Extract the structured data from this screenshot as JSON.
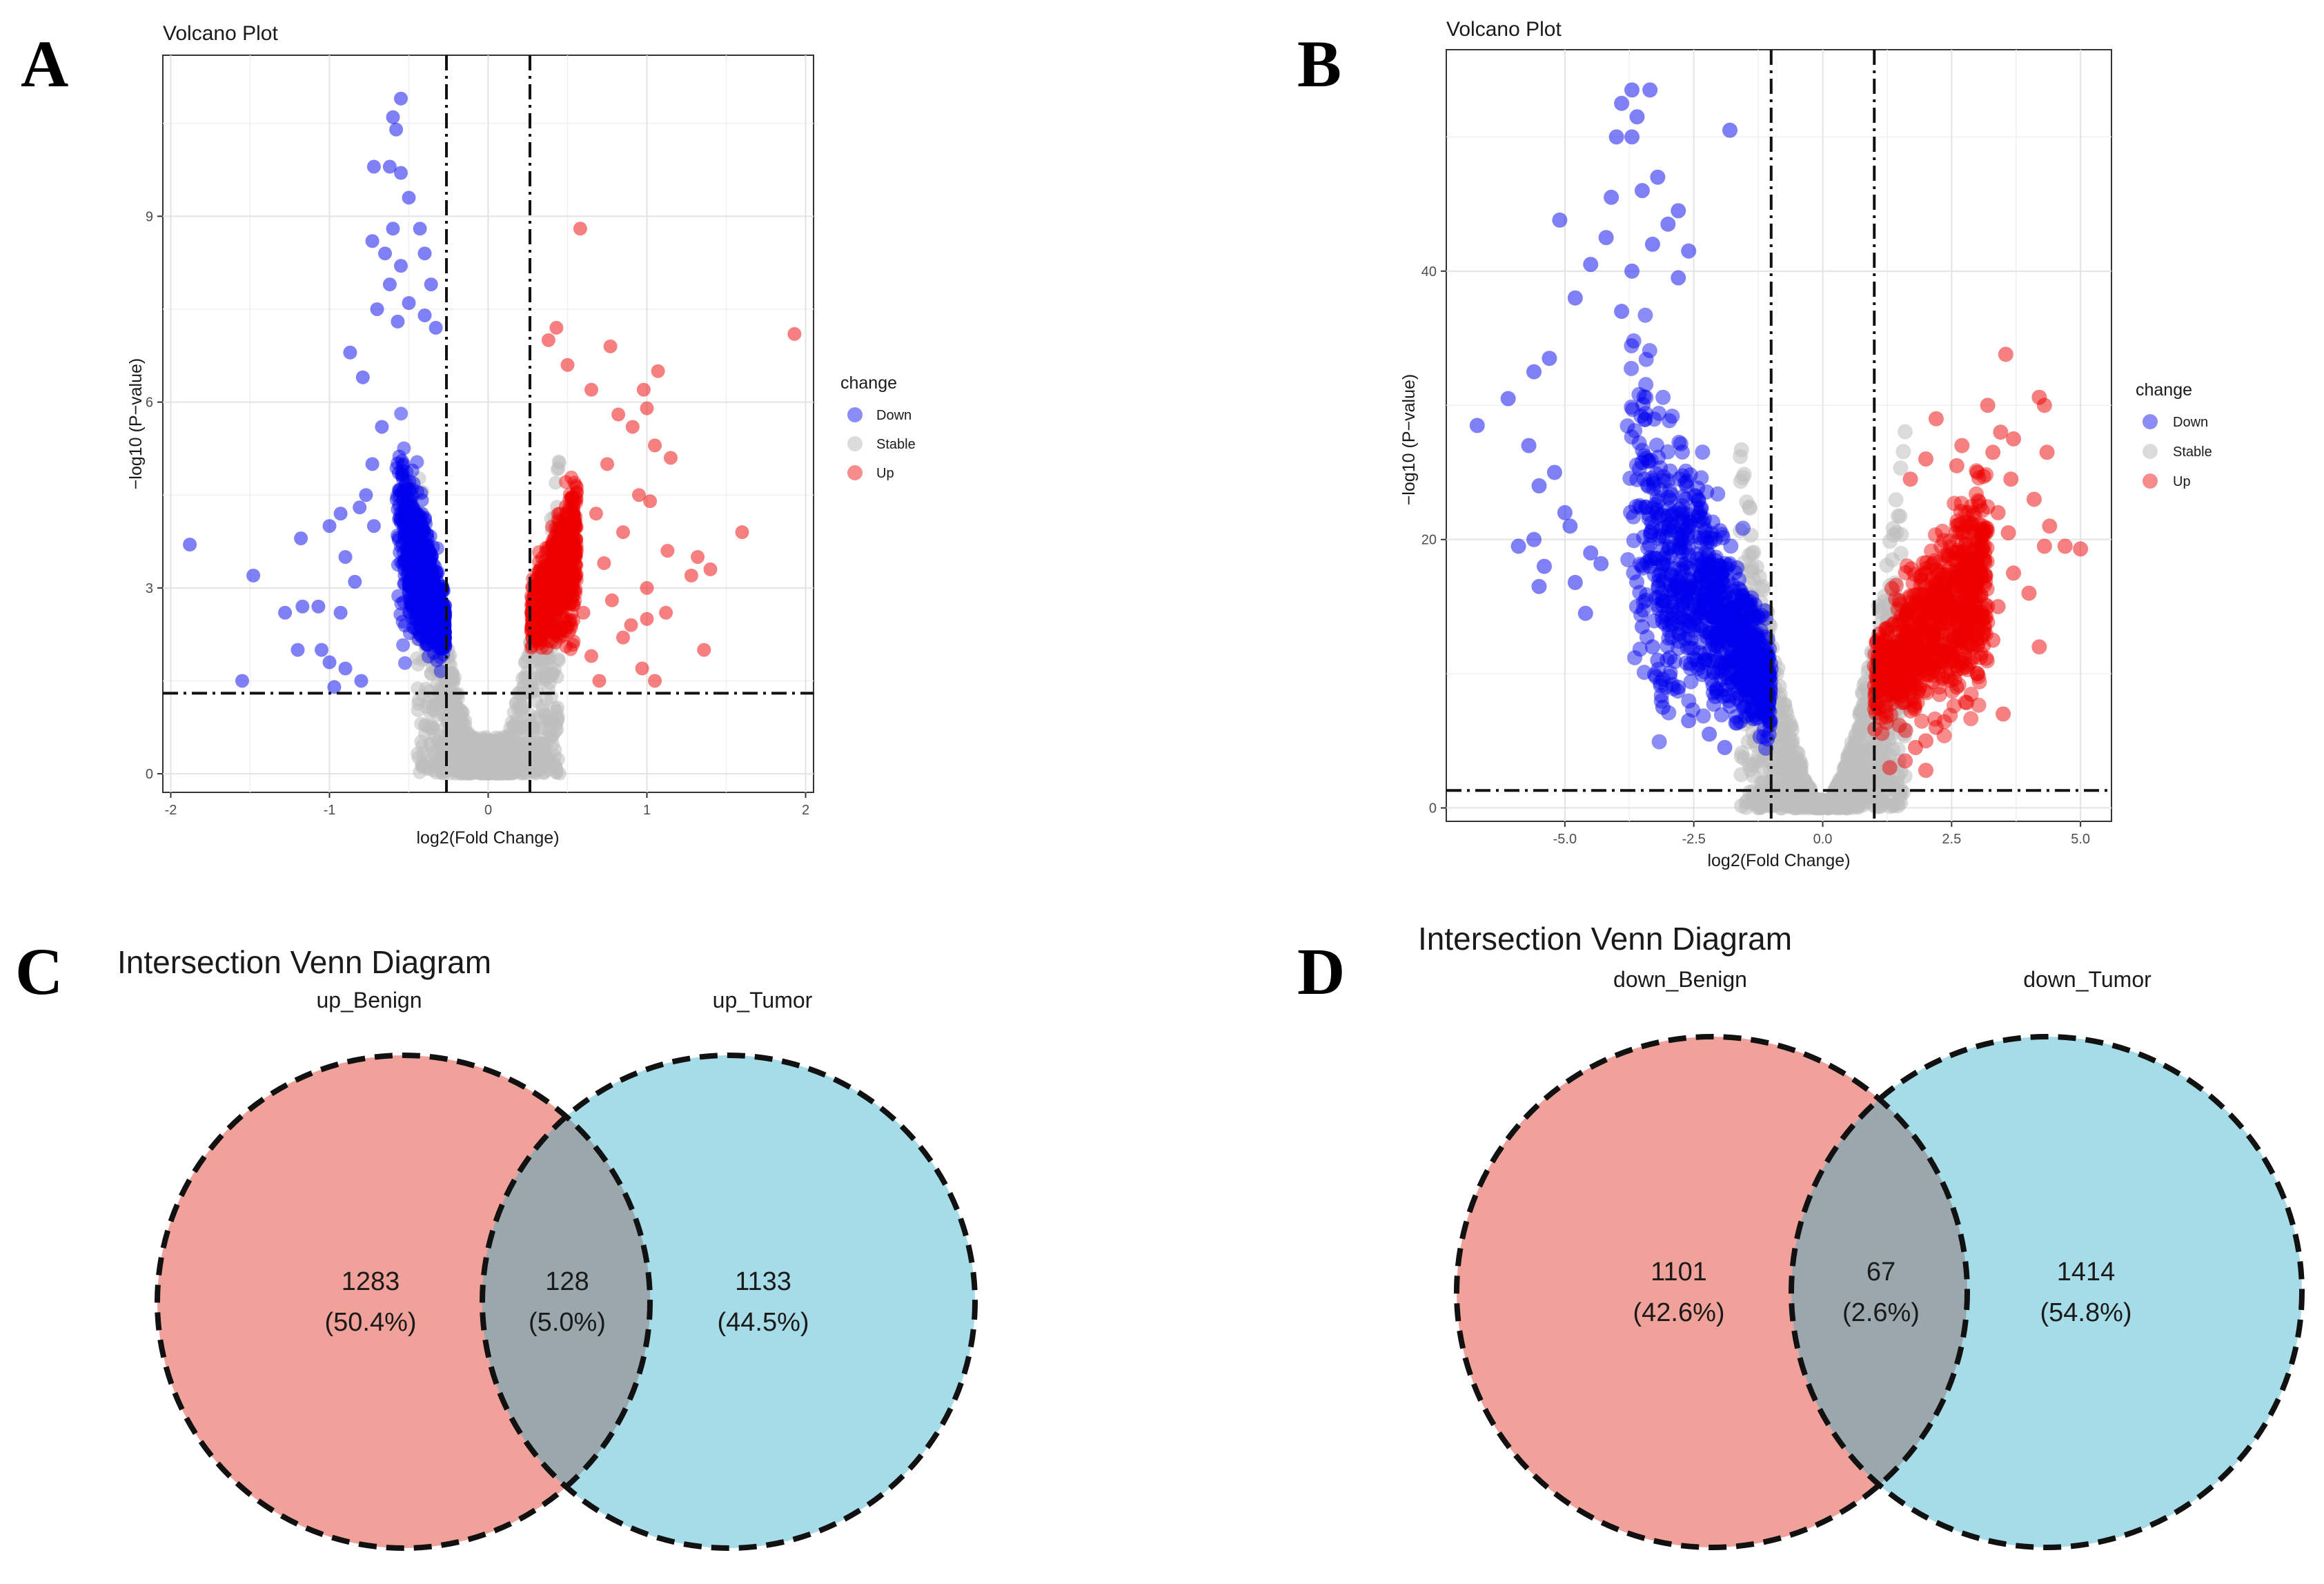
{
  "figure": {
    "panel_labels": [
      "A",
      "B",
      "C",
      "D"
    ]
  },
  "colors": {
    "down": "#0000ee",
    "stable": "#bdbdbd",
    "up": "#ee0000",
    "venn_left": "#f0a199",
    "venn_right": "#a6dbe8",
    "venn_overlap": "#9aa8ae"
  },
  "chart_data": [
    {
      "panel": "A",
      "type": "scatter",
      "title": "Volcano Plot",
      "xlabel": "log2(Fold Change)",
      "ylabel": "−log10 (P−value)",
      "xlim": [
        -2.05,
        2.05
      ],
      "ylim": [
        -0.3,
        11.6
      ],
      "xticks": [
        -2,
        -1,
        0,
        1,
        2
      ],
      "xtick_labels": [
        "-2",
        "-1",
        "0",
        "1",
        "2"
      ],
      "yticks": [
        0,
        3,
        6,
        9
      ],
      "ytick_labels": [
        "0",
        "3",
        "6",
        "9"
      ],
      "fc_cutoff": 0.263,
      "p_cutoff": 1.3,
      "down_cluster": {
        "x_min": -0.58,
        "x_max": -0.27,
        "y_min": 1.35,
        "y_max": 6.6
      },
      "up_cluster": {
        "x_min": 0.27,
        "x_max": 0.56,
        "y_min": 1.35,
        "y_max": 5.2
      },
      "stable_cluster": {
        "x_min": -0.45,
        "x_max": 0.45,
        "y_min": 0.0,
        "y_max": 5.0
      },
      "legend": {
        "title": "change",
        "items": [
          "Down",
          "Stable",
          "Up"
        ],
        "position": "right"
      },
      "series": [
        {
          "name": "Down",
          "points": [
            [
              -0.55,
              10.9
            ],
            [
              -0.6,
              10.6
            ],
            [
              -0.58,
              10.4
            ],
            [
              -0.72,
              9.8
            ],
            [
              -0.62,
              9.8
            ],
            [
              -0.55,
              9.7
            ],
            [
              -0.5,
              9.3
            ],
            [
              -0.6,
              8.8
            ],
            [
              -0.43,
              8.8
            ],
            [
              -0.73,
              8.6
            ],
            [
              -0.65,
              8.4
            ],
            [
              -0.4,
              8.4
            ],
            [
              -0.55,
              8.2
            ],
            [
              -0.62,
              7.9
            ],
            [
              -0.36,
              7.9
            ],
            [
              -0.5,
              7.6
            ],
            [
              -0.7,
              7.5
            ],
            [
              -0.4,
              7.4
            ],
            [
              -0.57,
              7.3
            ],
            [
              -0.33,
              7.2
            ],
            [
              -0.87,
              6.8
            ],
            [
              -0.79,
              6.4
            ],
            [
              -0.67,
              5.6
            ],
            [
              -0.73,
              5.0
            ],
            [
              -0.77,
              4.5
            ],
            [
              -0.81,
              4.3
            ],
            [
              -0.93,
              4.2
            ],
            [
              -0.72,
              4.0
            ],
            [
              -0.9,
              3.5
            ],
            [
              -1.0,
              4.0
            ],
            [
              -1.18,
              3.8
            ],
            [
              -0.84,
              3.1
            ],
            [
              -0.93,
              2.6
            ],
            [
              -1.07,
              2.7
            ],
            [
              -1.17,
              2.7
            ],
            [
              -1.28,
              2.6
            ],
            [
              -1.05,
              2.0
            ],
            [
              -1.2,
              2.0
            ],
            [
              -0.9,
              1.7
            ],
            [
              -1.0,
              1.8
            ],
            [
              -1.48,
              3.2
            ],
            [
              -1.88,
              3.7
            ],
            [
              -1.55,
              1.5
            ],
            [
              -0.8,
              1.5
            ],
            [
              -0.97,
              1.4
            ]
          ]
        },
        {
          "name": "Up",
          "points": [
            [
              0.58,
              8.8
            ],
            [
              1.93,
              7.1
            ],
            [
              0.43,
              7.2
            ],
            [
              0.38,
              7.0
            ],
            [
              0.77,
              6.9
            ],
            [
              0.5,
              6.6
            ],
            [
              1.07,
              6.5
            ],
            [
              0.65,
              6.2
            ],
            [
              0.98,
              6.2
            ],
            [
              1.0,
              5.9
            ],
            [
              0.82,
              5.8
            ],
            [
              0.91,
              5.6
            ],
            [
              1.05,
              5.3
            ],
            [
              1.15,
              5.1
            ],
            [
              0.75,
              5.0
            ],
            [
              0.95,
              4.5
            ],
            [
              1.02,
              4.4
            ],
            [
              0.68,
              4.2
            ],
            [
              0.85,
              3.9
            ],
            [
              1.13,
              3.6
            ],
            [
              1.6,
              3.9
            ],
            [
              1.28,
              3.2
            ],
            [
              1.4,
              3.3
            ],
            [
              1.32,
              3.5
            ],
            [
              1.0,
              3.0
            ],
            [
              0.78,
              2.8
            ],
            [
              0.9,
              2.4
            ],
            [
              1.0,
              2.5
            ],
            [
              1.12,
              2.6
            ],
            [
              0.85,
              2.2
            ],
            [
              1.36,
              2.0
            ],
            [
              0.97,
              1.7
            ],
            [
              1.05,
              1.5
            ],
            [
              0.7,
              1.5
            ],
            [
              0.65,
              1.9
            ],
            [
              0.6,
              2.6
            ],
            [
              0.73,
              3.4
            ]
          ]
        }
      ]
    },
    {
      "panel": "B",
      "type": "scatter",
      "title": "Volcano Plot",
      "xlabel": "log2(Fold Change)",
      "ylabel": "−log10 (P−value)",
      "xlim": [
        -7.3,
        5.6
      ],
      "ylim": [
        -1,
        56.5
      ],
      "xticks": [
        -5,
        -2.5,
        0,
        2.5,
        5
      ],
      "xtick_labels": [
        "-5.0",
        "-2.5",
        "0.0",
        "2.5",
        "5.0"
      ],
      "yticks": [
        0,
        20,
        40
      ],
      "ytick_labels": [
        "0",
        "20",
        "40"
      ],
      "fc_cutoff": 1.0,
      "p_cutoff": 1.3,
      "down_cluster": {
        "x_min": -3.8,
        "x_max": -1.0,
        "y_min": 1.4,
        "y_max": 42
      },
      "up_cluster": {
        "x_min": 1.0,
        "x_max": 3.2,
        "y_min": 1.4,
        "y_max": 28
      },
      "stable_cluster": {
        "x_min": -1.6,
        "x_max": 1.6,
        "y_min": 0.0,
        "y_max": 27
      },
      "legend": {
        "title": "change",
        "items": [
          "Down",
          "Stable",
          "Up"
        ],
        "position": "right"
      },
      "series": [
        {
          "name": "Down",
          "points": [
            [
              -3.7,
              53.5
            ],
            [
              -3.35,
              53.5
            ],
            [
              -3.9,
              52.5
            ],
            [
              -3.6,
              51.5
            ],
            [
              -4.0,
              50
            ],
            [
              -3.7,
              50
            ],
            [
              -1.8,
              50.5
            ],
            [
              -3.2,
              47
            ],
            [
              -3.5,
              46
            ],
            [
              -4.1,
              45.5
            ],
            [
              -2.8,
              44.5
            ],
            [
              -5.1,
              43.8
            ],
            [
              -3.0,
              43.5
            ],
            [
              -4.2,
              42.5
            ],
            [
              -3.3,
              42
            ],
            [
              -2.6,
              41.5
            ],
            [
              -4.5,
              40.5
            ],
            [
              -3.7,
              40
            ],
            [
              -2.8,
              39.5
            ],
            [
              -4.8,
              38
            ],
            [
              -3.9,
              37
            ],
            [
              -5.3,
              33.5
            ],
            [
              -5.6,
              32.5
            ],
            [
              -6.1,
              30.5
            ],
            [
              -6.7,
              28.5
            ],
            [
              -5.7,
              27
            ],
            [
              -5.2,
              25
            ],
            [
              -5.5,
              24
            ],
            [
              -5.0,
              22
            ],
            [
              -5.6,
              20
            ],
            [
              -5.9,
              19.5
            ],
            [
              -4.9,
              21
            ],
            [
              -4.5,
              19
            ],
            [
              -5.4,
              18
            ],
            [
              -5.5,
              16.5
            ],
            [
              -4.8,
              16.8
            ],
            [
              -4.6,
              14.5
            ],
            [
              -4.3,
              18.2
            ],
            [
              -3.3,
              12
            ],
            [
              -3.2,
              11
            ],
            [
              -2.8,
              9
            ],
            [
              -3.5,
              13.5
            ],
            [
              -3.1,
              7.5
            ],
            [
              -2.6,
              6.5
            ],
            [
              -2.2,
              5.5
            ],
            [
              -1.9,
              4.5
            ]
          ]
        },
        {
          "name": "Up",
          "points": [
            [
              3.55,
              33.8
            ],
            [
              4.2,
              30.6
            ],
            [
              3.2,
              30
            ],
            [
              4.3,
              30
            ],
            [
              2.2,
              29
            ],
            [
              3.45,
              28
            ],
            [
              2.7,
              27
            ],
            [
              3.7,
              27.5
            ],
            [
              3.3,
              26.5
            ],
            [
              4.35,
              26.5
            ],
            [
              2.0,
              26
            ],
            [
              2.6,
              25.5
            ],
            [
              3.0,
              25
            ],
            [
              3.65,
              24.5
            ],
            [
              1.7,
              24.5
            ],
            [
              4.1,
              23
            ],
            [
              3.4,
              22
            ],
            [
              2.8,
              21
            ],
            [
              4.4,
              21
            ],
            [
              3.6,
              20.5
            ],
            [
              4.7,
              19.5
            ],
            [
              5.0,
              19.3
            ],
            [
              4.3,
              19.5
            ],
            [
              3.0,
              18.5
            ],
            [
              3.7,
              17.5
            ],
            [
              4.0,
              16
            ],
            [
              3.4,
              15
            ],
            [
              2.5,
              14
            ],
            [
              3.3,
              12.5
            ],
            [
              4.2,
              12
            ],
            [
              3.0,
              10
            ],
            [
              2.6,
              9
            ],
            [
              3.5,
              7
            ],
            [
              2.2,
              6
            ],
            [
              2.0,
              5
            ],
            [
              1.8,
              4.5
            ],
            [
              1.6,
              3.5
            ],
            [
              1.3,
              3
            ],
            [
              2.0,
              2.8
            ]
          ]
        }
      ]
    }
  ],
  "venn": [
    {
      "panel": "C",
      "title": "Intersection Venn Diagram",
      "left_label": "up_Benign",
      "right_label": "up_Tumor",
      "left_count": "1283",
      "left_pct": "(50.4%)",
      "overlap_count": "128",
      "overlap_pct": "(5.0%)",
      "right_count": "1133",
      "right_pct": "(44.5%)"
    },
    {
      "panel": "D",
      "title": "Intersection Venn Diagram",
      "left_label": "down_Benign",
      "right_label": "down_Tumor",
      "left_count": "1101",
      "left_pct": "(42.6%)",
      "overlap_count": "67",
      "overlap_pct": "(2.6%)",
      "right_count": "1414",
      "right_pct": "(54.8%)"
    }
  ]
}
